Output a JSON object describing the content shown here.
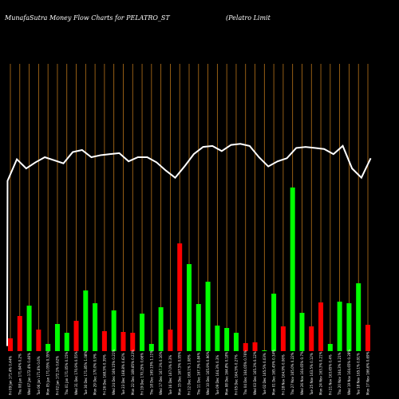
{
  "chart_data": {
    "type": "bar",
    "title_left": "MunafaSutra  Money Flow  Charts for PELATRO_ST",
    "title_right": "(Pelatro  Limit",
    "background": "#000000",
    "gridline_color": "#b8741a",
    "line_color": "#ffffff",
    "up_color": "#00ff00",
    "down_color": "#ff0000",
    "grid": true,
    "bars": [
      {
        "label": "Fri 09 Jan 171.4% 0.44%",
        "value": 16,
        "direction": "down"
      },
      {
        "label": "Thu 08 Jan 171.64% 0.2%",
        "value": 44,
        "direction": "down"
      },
      {
        "label": "Wed 07 Jan 172.4% 0.46%",
        "value": 57,
        "direction": "up"
      },
      {
        "label": "Tue 06 Jan 171.6% 0.6%",
        "value": 27,
        "direction": "down"
      },
      {
        "label": "Mon 05 Jan 171.05% 0.35%",
        "value": 9,
        "direction": "up"
      },
      {
        "label": "Fri 02 Jan 172.1% 0.62%",
        "value": 34,
        "direction": "up"
      },
      {
        "label": "Thu 01 Jan 171.05% 0.15%",
        "value": 23,
        "direction": "up"
      },
      {
        "label": "Wed 31 Dec 170.9% 0.55%",
        "value": 38,
        "direction": "down"
      },
      {
        "label": "Tue 30 Dec 171.85% 1.08%",
        "value": 76,
        "direction": "up"
      },
      {
        "label": "Mon 29 Dec 170.0% 0.9%",
        "value": 60,
        "direction": "up"
      },
      {
        "label": "Fri 26 Dec 168.5% 0.39%",
        "value": 25,
        "direction": "down"
      },
      {
        "label": "Wed 24 Dec 169.15% 0.21%",
        "value": 51,
        "direction": "up"
      },
      {
        "label": "Tue 23 Dec 168.8% 0.62%",
        "value": 24,
        "direction": "down"
      },
      {
        "label": "Mon 22 Dec 169.85% 0.23%",
        "value": 23,
        "direction": "down"
      },
      {
        "label": "Fri 19 Dec 170.25% 0.66%",
        "value": 47,
        "direction": "up"
      },
      {
        "label": "Thu 18 Dec 169.15% 1.11%",
        "value": 9,
        "direction": "up"
      },
      {
        "label": "Wed 17 Dec 167.3% 0.16%",
        "value": 55,
        "direction": "up"
      },
      {
        "label": "Tue 16 Dec 167.0% 0.3%",
        "value": 27,
        "direction": "down"
      },
      {
        "label": "Mon 15 Dec 167.5% 0.95%",
        "value": 135,
        "direction": "down"
      },
      {
        "label": "Fri 12 Dec 169.1% 1.08%",
        "value": 109,
        "direction": "up"
      },
      {
        "label": "Thu 11 Dec 167.3% 0.84%",
        "value": 59,
        "direction": "up"
      },
      {
        "label": "Wed 10 Dec 165.9% 0.96%",
        "value": 87,
        "direction": "up"
      },
      {
        "label": "Tue 09 Dec 164.3% 0.3%",
        "value": 32,
        "direction": "up"
      },
      {
        "label": "Mon 08 Dec 164.8% 0.18%",
        "value": 29,
        "direction": "up"
      },
      {
        "label": "Fri 05 Dec 164.5% 0.27%",
        "value": 23,
        "direction": "up"
      },
      {
        "label": "Thu 04 Dec 164.05% 0.76%",
        "value": 10,
        "direction": "down"
      },
      {
        "label": "Wed 03 Dec 165.3% 0.12%",
        "value": 11,
        "direction": "down"
      },
      {
        "label": "Tue 02 Dec 165.5% 0.03%",
        "value": 1,
        "direction": "up"
      },
      {
        "label": "Mon 01 Dec 165.45% 0.34%",
        "value": 72,
        "direction": "up"
      },
      {
        "label": "Fri 28 Nov 164.9% 0.06%",
        "value": 31,
        "direction": "down"
      },
      {
        "label": "Thu 27 Nov 165.0% 0.22%",
        "value": 205,
        "direction": "up"
      },
      {
        "label": "Wed 26 Nov 164.65% 0.7%",
        "value": 48,
        "direction": "up"
      },
      {
        "label": "Tue 25 Nov 163.5% 0.12%",
        "value": 31,
        "direction": "down"
      },
      {
        "label": "Mon 24 Nov 163.3% 0.21%",
        "value": 61,
        "direction": "down"
      },
      {
        "label": "Fri 21 Nov 163.65% 0.4%",
        "value": 9,
        "direction": "up"
      },
      {
        "label": "Thu 20 Nov 164.3% 0.21%",
        "value": 62,
        "direction": "up"
      },
      {
        "label": "Wed 19 Nov 164.65% 0.28%",
        "value": 60,
        "direction": "up"
      },
      {
        "label": "Tue 18 Nov 165.1% 0.91%",
        "value": 85,
        "direction": "up"
      },
      {
        "label": "Mon 17 Nov 166.6% 0.69%",
        "value": 33,
        "direction": "down"
      }
    ],
    "price_line": [
      5,
      166,
      187,
      178,
      184,
      189,
      186,
      183,
      194,
      196,
      189,
      191,
      192,
      193,
      185,
      189,
      189,
      184,
      176,
      169,
      180,
      192,
      199,
      200,
      195,
      201,
      202,
      200,
      189,
      180,
      185,
      188,
      198,
      199,
      198,
      197,
      192,
      200,
      178,
      169,
      188
    ],
    "price_line_max": 280
  }
}
